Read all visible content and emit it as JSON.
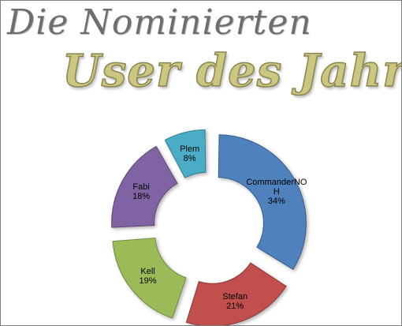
{
  "header": {
    "line1": "Die Nominierten",
    "line2": "User des Jahres"
  },
  "chart_data": {
    "type": "pie",
    "variant": "doughnut, exploded",
    "slices": [
      {
        "label": "CommanderNOH",
        "label_lines": [
          "CommanderNO",
          "H"
        ],
        "value": 34,
        "value_label": "34%",
        "color": "#4f81bd",
        "edge": "#385d8a"
      },
      {
        "label": "Stefan",
        "label_lines": [
          "Stefan"
        ],
        "value": 21,
        "value_label": "21%",
        "color": "#c0504d",
        "edge": "#8c3836"
      },
      {
        "label": "Kell",
        "label_lines": [
          "Kell"
        ],
        "value": 19,
        "value_label": "19%",
        "color": "#9bbb59",
        "edge": "#71893f"
      },
      {
        "label": "Fabi",
        "label_lines": [
          "Fabi"
        ],
        "value": 18,
        "value_label": "18%",
        "color": "#8064a2",
        "edge": "#5c4776"
      },
      {
        "label": "Plem",
        "label_lines": [
          "Plem"
        ],
        "value": 8,
        "value_label": "8%",
        "color": "#4bacc6",
        "edge": "#357d91"
      }
    ]
  }
}
